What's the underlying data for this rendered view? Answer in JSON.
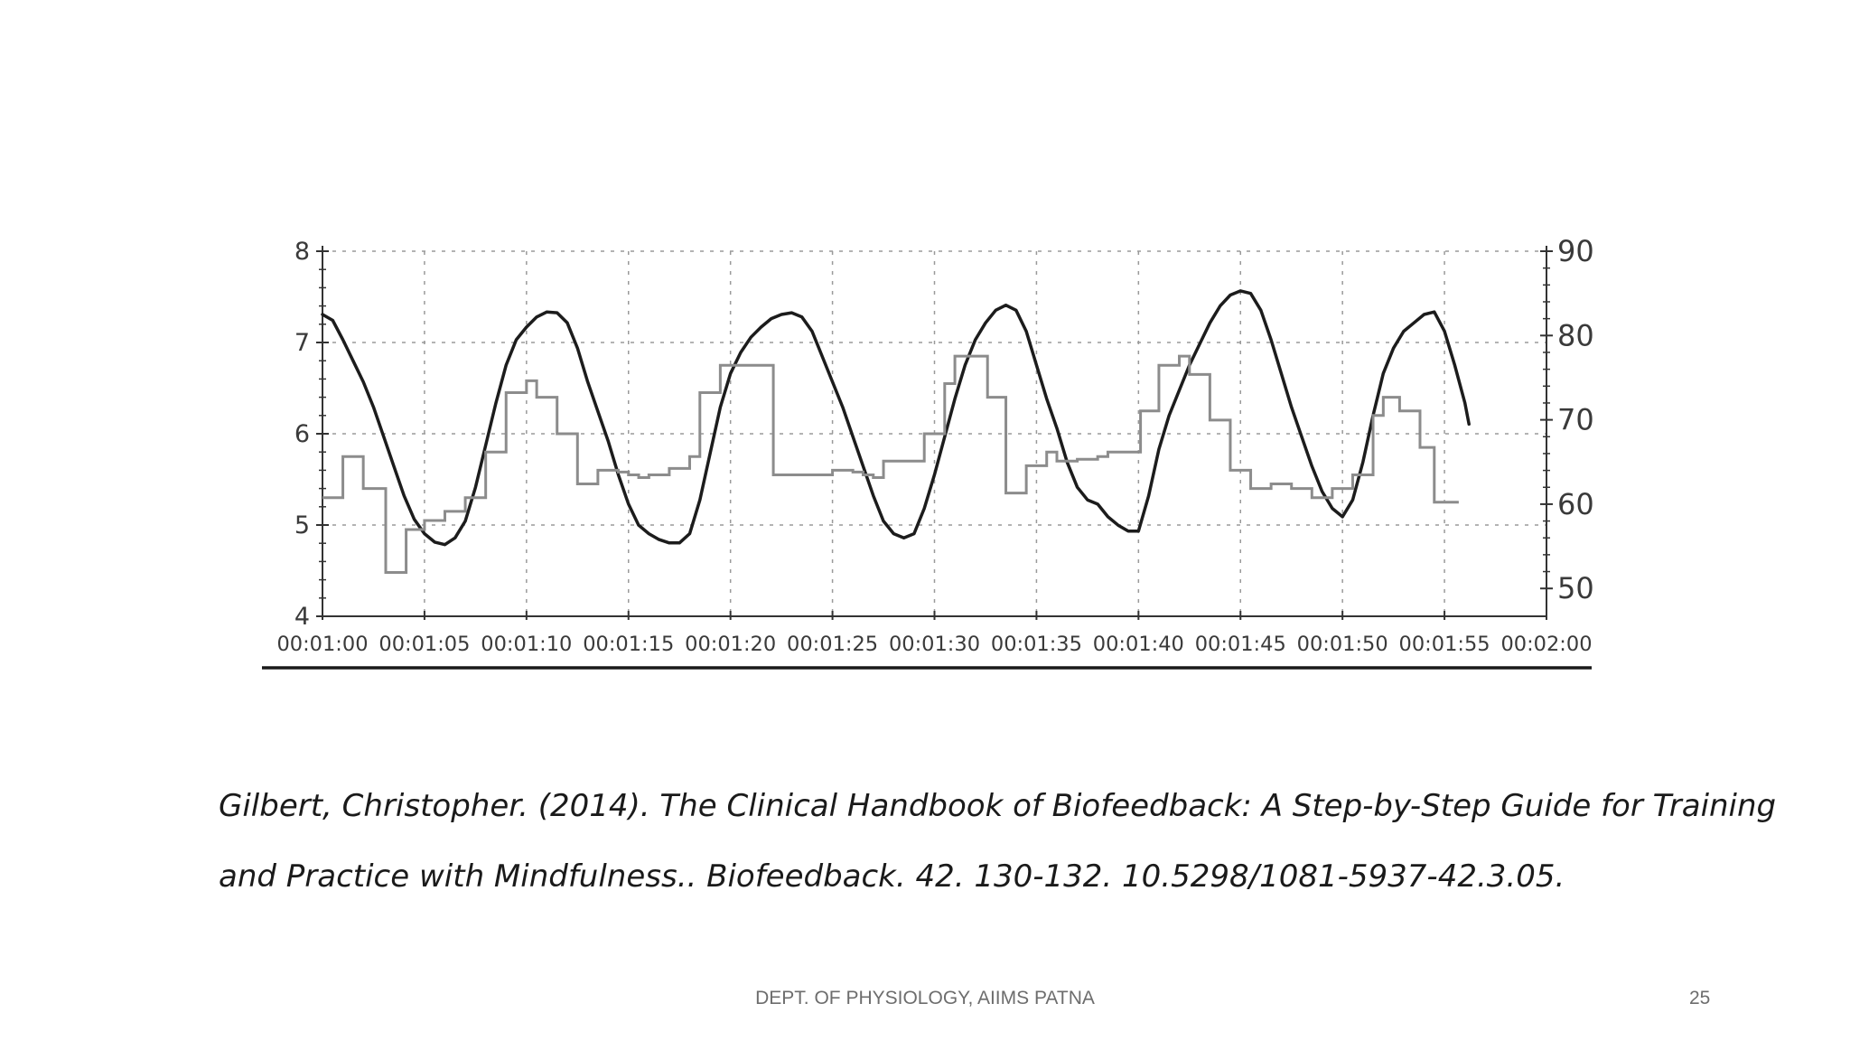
{
  "slide": {
    "citation_line1": "Gilbert, Christopher. (2014). The Clinical Handbook of Biofeedback: A Step-by-Step Guide for Training",
    "citation_line2": "and Practice with Mindfulness.. Biofeedback. 42. 130-132. 10.5298/1081-5937-42.3.05.",
    "footer": "DEPT. OF PHYSIOLOGY, AIIMS PATNA",
    "page_number": "25"
  },
  "colors": {
    "smooth_series": "#1c1c1c",
    "step_series": "#8c8c8c",
    "grid": "#9a9a9a",
    "axis": "#333333"
  },
  "chart_data": {
    "type": "line",
    "title": "",
    "xlabel": "",
    "ylabel_left": "",
    "ylabel_right": "",
    "x_unit": "seconds",
    "x_ticks": [
      "00:01:00",
      "00:01:05",
      "00:01:10",
      "00:01:15",
      "00:01:20",
      "00:01:25",
      "00:01:30",
      "00:01:35",
      "00:01:40",
      "00:01:45",
      "00:01:50",
      "00:01:55",
      "00:02:00"
    ],
    "xlim": [
      60,
      120
    ],
    "left_axis": {
      "ticks": [
        "4",
        "5",
        "6",
        "7",
        "8"
      ],
      "ylim": [
        4,
        8
      ]
    },
    "right_axis": {
      "ticks": [
        "50",
        "60",
        "70",
        "80",
        "90"
      ],
      "ylim": [
        46.7,
        90
      ]
    },
    "grid": true,
    "legend": "none",
    "series": [
      {
        "style": "smooth",
        "axis": "right",
        "points": [
          [
            60.0,
            82.5
          ],
          [
            60.5,
            81.8
          ],
          [
            61.0,
            79.5
          ],
          [
            61.5,
            77.0
          ],
          [
            62.0,
            74.5
          ],
          [
            62.5,
            71.5
          ],
          [
            63.0,
            68.0
          ],
          [
            63.5,
            64.5
          ],
          [
            64.0,
            61.0
          ],
          [
            64.5,
            58.2
          ],
          [
            65.0,
            56.5
          ],
          [
            65.5,
            55.5
          ],
          [
            66.0,
            55.2
          ],
          [
            66.5,
            56.0
          ],
          [
            67.0,
            58.0
          ],
          [
            67.5,
            62.0
          ],
          [
            68.0,
            67.0
          ],
          [
            68.5,
            72.0
          ],
          [
            69.0,
            76.5
          ],
          [
            69.5,
            79.5
          ],
          [
            70.0,
            81.0
          ],
          [
            70.5,
            82.2
          ],
          [
            71.0,
            82.8
          ],
          [
            71.5,
            82.7
          ],
          [
            72.0,
            81.5
          ],
          [
            72.5,
            78.5
          ],
          [
            73.0,
            74.5
          ],
          [
            73.5,
            71.0
          ],
          [
            74.0,
            67.5
          ],
          [
            74.5,
            63.5
          ],
          [
            75.0,
            60.0
          ],
          [
            75.5,
            57.5
          ],
          [
            76.0,
            56.5
          ],
          [
            76.5,
            55.8
          ],
          [
            77.0,
            55.4
          ],
          [
            77.5,
            55.4
          ],
          [
            78.0,
            56.5
          ],
          [
            78.5,
            60.5
          ],
          [
            79.0,
            66.0
          ],
          [
            79.5,
            71.5
          ],
          [
            80.0,
            75.5
          ],
          [
            80.5,
            78.0
          ],
          [
            81.0,
            79.8
          ],
          [
            81.5,
            81.0
          ],
          [
            82.0,
            82.0
          ],
          [
            82.5,
            82.5
          ],
          [
            83.0,
            82.7
          ],
          [
            83.5,
            82.2
          ],
          [
            84.0,
            80.5
          ],
          [
            84.5,
            77.5
          ],
          [
            85.0,
            74.5
          ],
          [
            85.5,
            71.5
          ],
          [
            86.0,
            68.0
          ],
          [
            86.5,
            64.5
          ],
          [
            87.0,
            61.0
          ],
          [
            87.5,
            58.0
          ],
          [
            88.0,
            56.5
          ],
          [
            88.5,
            56.0
          ],
          [
            89.0,
            56.5
          ],
          [
            89.5,
            59.5
          ],
          [
            90.0,
            63.5
          ],
          [
            90.5,
            68.0
          ],
          [
            91.0,
            72.5
          ],
          [
            91.5,
            76.5
          ],
          [
            92.0,
            79.5
          ],
          [
            92.5,
            81.5
          ],
          [
            93.0,
            83.0
          ],
          [
            93.5,
            83.6
          ],
          [
            94.0,
            83.0
          ],
          [
            94.5,
            80.5
          ],
          [
            95.0,
            76.5
          ],
          [
            95.5,
            72.5
          ],
          [
            96.0,
            69.0
          ],
          [
            96.5,
            65.0
          ],
          [
            97.0,
            62.0
          ],
          [
            97.5,
            60.5
          ],
          [
            98.0,
            60.0
          ],
          [
            98.5,
            58.5
          ],
          [
            99.0,
            57.5
          ],
          [
            99.5,
            56.8
          ],
          [
            100.0,
            56.8
          ],
          [
            100.5,
            61.0
          ],
          [
            101.0,
            66.5
          ],
          [
            101.5,
            70.5
          ],
          [
            102.0,
            73.5
          ],
          [
            102.5,
            76.5
          ],
          [
            103.0,
            79.0
          ],
          [
            103.5,
            81.5
          ],
          [
            104.0,
            83.5
          ],
          [
            104.5,
            84.8
          ],
          [
            105.0,
            85.3
          ],
          [
            105.5,
            85.0
          ],
          [
            106.0,
            83.0
          ],
          [
            106.5,
            79.5
          ],
          [
            107.0,
            75.5
          ],
          [
            107.5,
            71.5
          ],
          [
            108.0,
            68.0
          ],
          [
            108.5,
            64.5
          ],
          [
            109.0,
            61.5
          ],
          [
            109.5,
            59.5
          ],
          [
            110.0,
            58.5
          ],
          [
            110.5,
            60.5
          ],
          [
            111.0,
            65.0
          ],
          [
            111.5,
            70.5
          ],
          [
            112.0,
            75.5
          ],
          [
            112.5,
            78.5
          ],
          [
            113.0,
            80.5
          ],
          [
            113.5,
            81.5
          ],
          [
            114.0,
            82.5
          ],
          [
            114.5,
            82.8
          ],
          [
            115.0,
            80.5
          ],
          [
            115.5,
            76.5
          ],
          [
            116.0,
            72.0
          ],
          [
            116.2,
            69.5
          ]
        ]
      },
      {
        "style": "step",
        "axis": "left",
        "points": [
          [
            60.0,
            5.3
          ],
          [
            61.0,
            5.75
          ],
          [
            62.0,
            5.4
          ],
          [
            63.0,
            5.4
          ],
          [
            63.1,
            4.48
          ],
          [
            64.0,
            4.48
          ],
          [
            64.1,
            4.95
          ],
          [
            65.0,
            5.05
          ],
          [
            66.0,
            5.15
          ],
          [
            67.0,
            5.3
          ],
          [
            68.0,
            5.8
          ],
          [
            69.0,
            6.45
          ],
          [
            70.0,
            6.58
          ],
          [
            70.5,
            6.4
          ],
          [
            71.5,
            6.0
          ],
          [
            72.5,
            5.45
          ],
          [
            73.5,
            5.6
          ],
          [
            74.5,
            5.58
          ],
          [
            75.0,
            5.55
          ],
          [
            75.5,
            5.52
          ],
          [
            76.0,
            5.55
          ],
          [
            77.0,
            5.62
          ],
          [
            78.0,
            5.75
          ],
          [
            78.5,
            6.45
          ],
          [
            79.5,
            6.75
          ],
          [
            82.0,
            6.75
          ],
          [
            82.1,
            5.55
          ],
          [
            85.0,
            5.6
          ],
          [
            86.0,
            5.58
          ],
          [
            86.5,
            5.55
          ],
          [
            87.0,
            5.52
          ],
          [
            87.5,
            5.7
          ],
          [
            89.0,
            5.7
          ],
          [
            89.5,
            6.0
          ],
          [
            90.5,
            6.55
          ],
          [
            91.0,
            6.85
          ],
          [
            92.5,
            6.85
          ],
          [
            92.6,
            6.4
          ],
          [
            93.5,
            5.35
          ],
          [
            94.5,
            5.65
          ],
          [
            95.5,
            5.8
          ],
          [
            96.0,
            5.7
          ],
          [
            97.0,
            5.72
          ],
          [
            98.0,
            5.75
          ],
          [
            98.5,
            5.8
          ],
          [
            100.0,
            5.8
          ],
          [
            100.1,
            6.25
          ],
          [
            101.0,
            6.75
          ],
          [
            102.0,
            6.85
          ],
          [
            102.5,
            6.65
          ],
          [
            103.5,
            6.15
          ],
          [
            104.5,
            5.6
          ],
          [
            105.5,
            5.4
          ],
          [
            106.5,
            5.45
          ],
          [
            107.5,
            5.4
          ],
          [
            108.5,
            5.3
          ],
          [
            109.5,
            5.4
          ],
          [
            110.5,
            5.55
          ],
          [
            111.5,
            6.2
          ],
          [
            112.0,
            6.4
          ],
          [
            112.8,
            6.25
          ],
          [
            113.8,
            5.85
          ],
          [
            114.5,
            5.25
          ],
          [
            115.0,
            5.25
          ]
        ]
      }
    ]
  }
}
